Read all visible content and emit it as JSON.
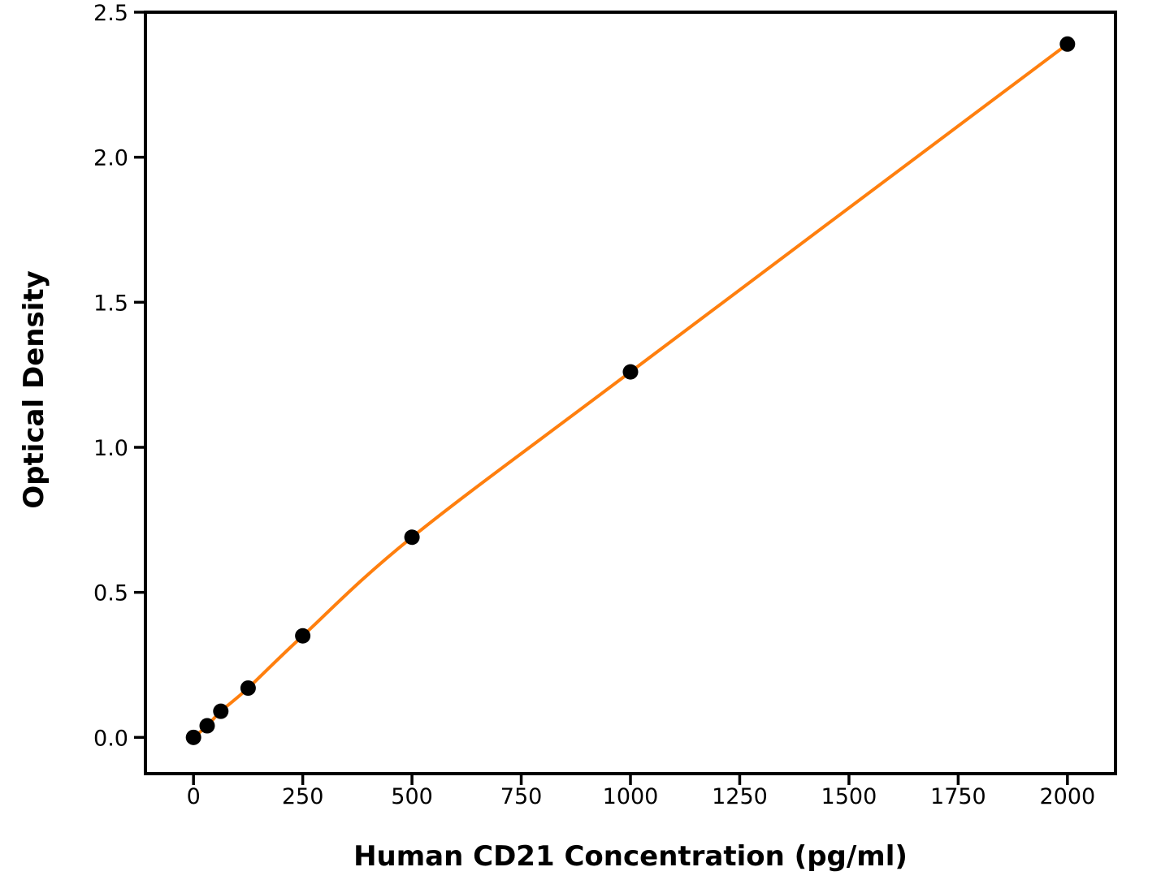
{
  "figure": {
    "background_color": "#ffffff"
  },
  "chart_data": {
    "type": "scatter",
    "x": [
      0,
      31.25,
      62.5,
      125,
      250,
      500,
      1000,
      2000
    ],
    "y": [
      0.0,
      0.04,
      0.09,
      0.17,
      0.35,
      0.69,
      1.26,
      2.39
    ],
    "title": "",
    "xlabel": "Human CD21 Concentration (pg/ml)",
    "ylabel": "Optical Density",
    "x_ticks": [
      0,
      250,
      500,
      750,
      1000,
      1250,
      1500,
      1750,
      2000
    ],
    "x_tick_labels": [
      "0",
      "250",
      "500",
      "750",
      "1000",
      "1250",
      "1500",
      "1750",
      "2000"
    ],
    "y_ticks": [
      0.0,
      0.5,
      1.0,
      1.5,
      2.0,
      2.5
    ],
    "y_tick_labels": [
      "0.0",
      "0.5",
      "1.0",
      "1.5",
      "2.0",
      "2.5"
    ],
    "xlim": [
      -110,
      2110
    ],
    "ylim": [
      -0.125,
      2.5
    ],
    "grid": false,
    "legend": "none",
    "line_color": "#ff7f0e",
    "marker_color": "#000000",
    "spine_color": "#000000",
    "marker_radius": 9.5,
    "line_width": 4
  }
}
